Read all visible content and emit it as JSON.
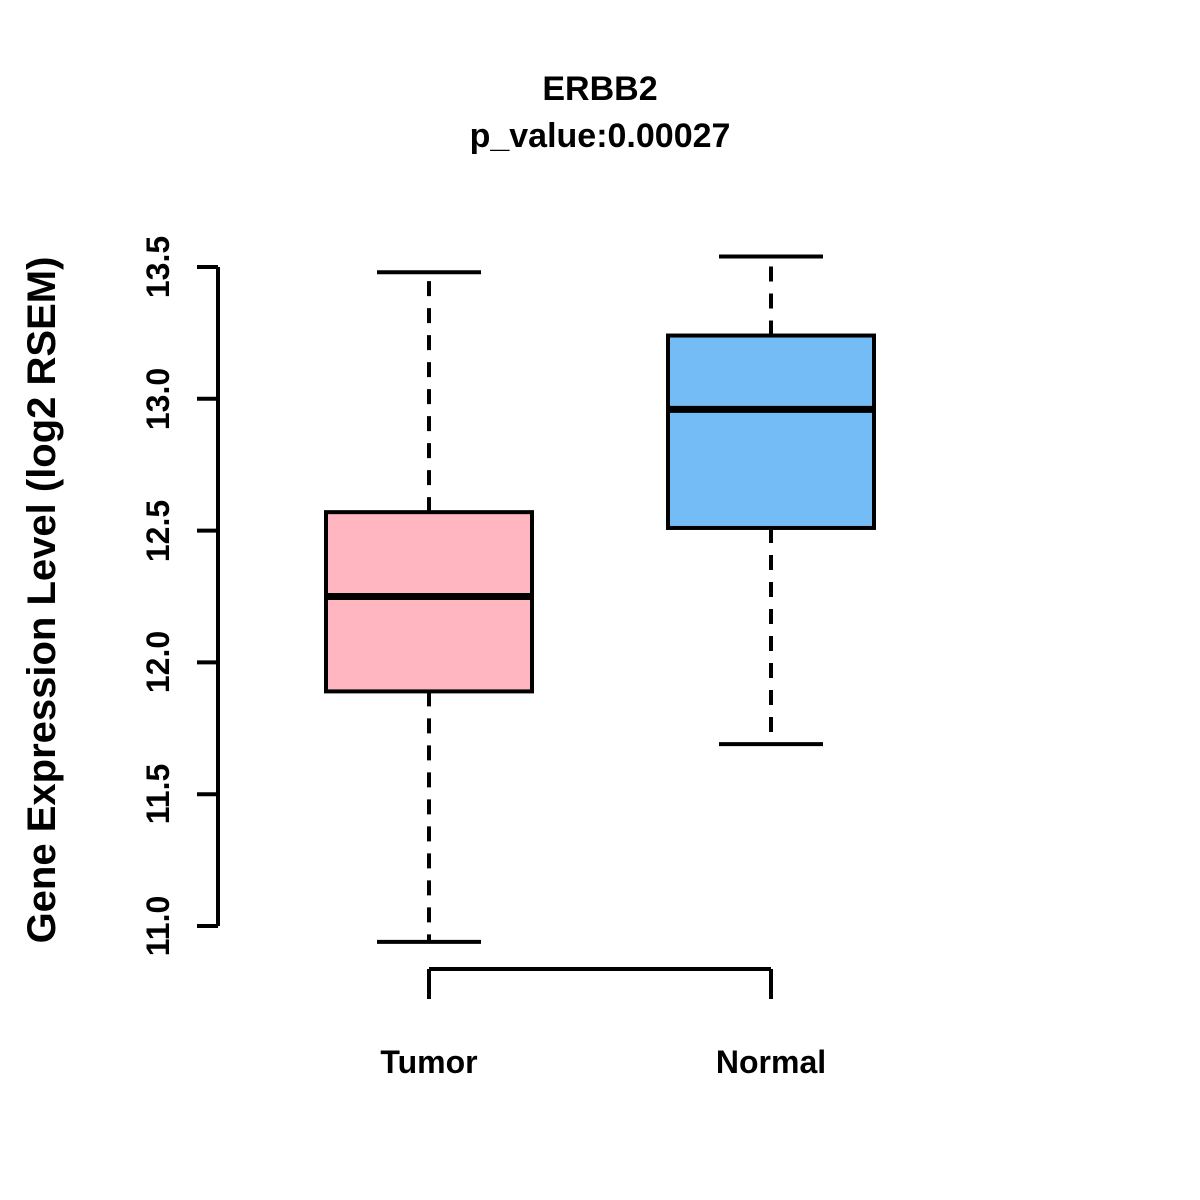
{
  "chart_data": {
    "type": "boxplot",
    "title": "ERBB2",
    "subtitle": "p_value:0.00027",
    "ylabel": "Gene Expression Level (log2 RSEM)",
    "categories": [
      "Tumor",
      "Normal"
    ],
    "ylim": [
      11.0,
      13.5
    ],
    "yticks": [
      11.0,
      11.5,
      12.0,
      12.5,
      13.0,
      13.5
    ],
    "ytick_labels": [
      "11.0",
      "11.5",
      "12.0",
      "12.5",
      "13.0",
      "13.5"
    ],
    "grid": false,
    "legend": "none",
    "series": [
      {
        "name": "Tumor",
        "color": "#FFB6C1",
        "stats": {
          "whisker_low": 10.94,
          "q1": 11.89,
          "median": 12.25,
          "q3": 12.57,
          "whisker_high": 13.48
        }
      },
      {
        "name": "Normal",
        "color": "#74BCF6",
        "stats": {
          "whisker_low": 11.69,
          "q1": 12.51,
          "median": 12.96,
          "q3": 13.24,
          "whisker_high": 13.54
        }
      }
    ],
    "colors": {
      "stroke": "#000000",
      "text": "#000000",
      "background": "#FFFFFF"
    }
  }
}
